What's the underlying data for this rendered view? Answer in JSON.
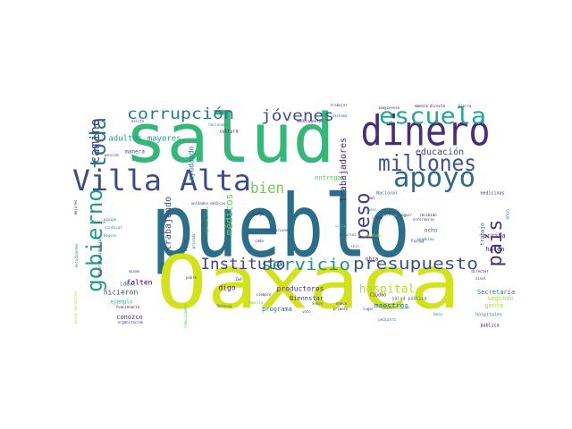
{
  "words": [
    {
      "text": "pueblo",
      "size": 96,
      "color": "#2b6e8a",
      "rotate": 0
    },
    {
      "text": "Oaxaca",
      "size": 82,
      "color": "#d2e21b",
      "rotate": 0
    },
    {
      "text": "salud",
      "size": 76,
      "color": "#35b779",
      "rotate": 0
    },
    {
      "text": "dinero",
      "size": 46,
      "color": "#472d7b",
      "rotate": 0
    },
    {
      "text": "Villa Alta",
      "size": 32,
      "color": "#3e4a89",
      "rotate": 0
    },
    {
      "text": "apoyo",
      "size": 30,
      "color": "#31688e",
      "rotate": 0
    },
    {
      "text": "escuela",
      "size": 26,
      "color": "#26a69a",
      "rotate": 0
    },
    {
      "text": "millones",
      "size": 25,
      "color": "#3b528b",
      "rotate": 0
    },
    {
      "text": "gobierno",
      "size": 24,
      "color": "#1f9e89",
      "rotate": -90
    },
    {
      "text": "toda",
      "size": 24,
      "color": "#2c728e",
      "rotate": -90
    },
    {
      "text": "país",
      "size": 22,
      "color": "#46327e",
      "rotate": -90
    },
    {
      "text": "peso",
      "size": 22,
      "color": "#433e85",
      "rotate": -90
    },
    {
      "text": "presupuesto",
      "size": 18,
      "color": "#3b528b",
      "rotate": 0
    },
    {
      "text": "servicio",
      "size": 18,
      "color": "#21918c",
      "rotate": 0
    },
    {
      "text": "Instituto",
      "size": 17,
      "color": "#433e85",
      "rotate": 0
    },
    {
      "text": "corrupción",
      "size": 17,
      "color": "#2a788e",
      "rotate": 0
    },
    {
      "text": "jóvenes",
      "size": 17,
      "color": "#3b528b",
      "rotate": 0
    },
    {
      "text": "bien",
      "size": 17,
      "color": "#6ece58",
      "rotate": 0
    },
    {
      "text": "camino",
      "size": 14,
      "color": "#414487",
      "rotate": -90
    },
    {
      "text": "hospital",
      "size": 13,
      "color": "#b5de2b",
      "rotate": 0
    },
    {
      "text": "médicos",
      "size": 11,
      "color": "#5ec962",
      "rotate": -90
    },
    {
      "text": "educación",
      "size": 10,
      "color": "#414487",
      "rotate": 0
    },
    {
      "text": "trabajadores",
      "size": 10,
      "color": "#482878",
      "rotate": -90
    },
    {
      "text": "trabajando",
      "size": 10,
      "color": "#3e4a89",
      "rotate": -90
    },
    {
      "text": "adultos mayores",
      "size": 9,
      "color": "#1f9e89",
      "rotate": 0
    },
    {
      "text": "ayudando",
      "size": 8,
      "color": "#2a788e",
      "rotate": -90
    },
    {
      "text": "hicieron",
      "size": 8,
      "color": "#3b528b",
      "rotate": 0
    },
    {
      "text": "falten",
      "size": 8,
      "color": "#440154",
      "rotate": 0
    },
    {
      "text": "digo",
      "size": 8,
      "color": "#472d7b",
      "rotate": 0
    },
    {
      "text": "productores",
      "size": 8,
      "color": "#46327e",
      "rotate": 0
    },
    {
      "text": "Bienestar",
      "size": 7,
      "color": "#414487",
      "rotate": 0
    },
    {
      "text": "maestros",
      "size": 8,
      "color": "#31688e",
      "rotate": 0
    },
    {
      "text": "Secretaría",
      "size": 7,
      "color": "#2a788e",
      "rotate": 0
    },
    {
      "text": "segundo",
      "size": 7,
      "color": "#b5de2b",
      "rotate": 0
    },
    {
      "text": "gente",
      "size": 7,
      "color": "#b5de2b",
      "rotate": 0
    },
    {
      "text": "hacen",
      "size": 7,
      "color": "#482878",
      "rotate": 0
    },
    {
      "text": "arriba",
      "size": 7,
      "color": "#482878",
      "rotate": 0
    },
    {
      "text": "entregar",
      "size": 7,
      "color": "#5ec962",
      "rotate": 0
    },
    {
      "text": "programa",
      "size": 7,
      "color": "#31688e",
      "rotate": 0
    },
    {
      "text": "conozco",
      "size": 7,
      "color": "#472d7b",
      "rotate": 0
    },
    {
      "text": "ideal",
      "size": 6,
      "color": "#31688e",
      "rotate": 0
    },
    {
      "text": "ejemplo",
      "size": 6,
      "color": "#35b779",
      "rotate": 0
    },
    {
      "text": "manera",
      "size": 6,
      "color": "#3e4a89",
      "rotate": 0
    },
    {
      "text": "cultura",
      "size": 5,
      "color": "#440154",
      "rotate": 0
    },
    {
      "text": "Nacional",
      "size": 5,
      "color": "#31688e",
      "rotate": 0
    },
    {
      "text": "medicinas",
      "size": 5,
      "color": "#472d7b",
      "rotate": 0
    },
    {
      "text": "forma",
      "size": 5,
      "color": "#46327e",
      "rotate": 0
    },
    {
      "text": "obra",
      "size": 6,
      "color": "#482878",
      "rotate": 0
    },
    {
      "text": "ocho",
      "size": 6,
      "color": "#3b528b",
      "rotate": 0
    },
    {
      "text": "trabajo",
      "size": 6,
      "color": "#3b528b",
      "rotate": -90
    },
    {
      "text": "años",
      "size": 5,
      "color": "#21918c",
      "rotate": -90
    },
    {
      "text": "Ciudad",
      "size": 5,
      "color": "#482878",
      "rotate": 0
    },
    {
      "text": "pública",
      "size": 5,
      "color": "#440154",
      "rotate": 0
    },
    {
      "text": "hospitales",
      "size": 5,
      "color": "#2a788e",
      "rotate": 0
    },
    {
      "text": "salud pública",
      "size": 5,
      "color": "#31688e",
      "rotate": 0
    },
    {
      "text": "instalaciones",
      "size": 4,
      "color": "#414487",
      "rotate": 0
    },
    {
      "text": "unidades médicas",
      "size": 4,
      "color": "#3e4a89",
      "rotate": 0
    },
    {
      "text": "medicamentos",
      "size": 4,
      "color": "#440154",
      "rotate": 0
    },
    {
      "text": "manera directa",
      "size": 4,
      "color": "#440154",
      "rotate": 0
    },
    {
      "text": "Sierra",
      "size": 4,
      "color": "#472d7b",
      "rotate": 0
    },
    {
      "text": "imagínense",
      "size": 4,
      "color": "#46327e",
      "rotate": 0
    },
    {
      "text": "trabajar",
      "size": 4,
      "color": "#3e4a89",
      "rotate": 0
    },
    {
      "text": "sistema",
      "size": 4,
      "color": "#2a788e",
      "rotate": 0
    },
    {
      "text": "haciendo",
      "size": 4,
      "color": "#21918c",
      "rotate": 0
    },
    {
      "text": "existe",
      "size": 4,
      "color": "#414487",
      "rotate": 0
    },
    {
      "text": "pensión",
      "size": 4,
      "color": "#3b528b",
      "rotate": 0
    },
    {
      "text": "cargo",
      "size": 4,
      "color": "#440154",
      "rotate": 0
    },
    {
      "text": "cada",
      "size": 4,
      "color": "#46327e",
      "rotate": 0
    },
    {
      "text": "mismo",
      "size": 4,
      "color": "#482878",
      "rotate": 0
    },
    {
      "text": "veces",
      "size": 4,
      "color": "#3e4a89",
      "rotate": 0
    },
    {
      "text": "equipo",
      "size": 4,
      "color": "#31688e",
      "rotate": 0
    },
    {
      "text": "sindical",
      "size": 4,
      "color": "#2a788e",
      "rotate": 0
    },
    {
      "text": "Seguro",
      "size": 4,
      "color": "#21918c",
      "rotate": 0
    },
    {
      "text": "pobre",
      "size": 4,
      "color": "#414487",
      "rotate": 0
    },
    {
      "text": "Zoé",
      "size": 4,
      "color": "#440154",
      "rotate": 0
    },
    {
      "text": "siempre",
      "size": 4,
      "color": "#482878",
      "rotate": 0
    },
    {
      "text": "Defensa",
      "size": 4,
      "color": "#3b528b",
      "rotate": 0
    },
    {
      "text": "familia",
      "size": 4,
      "color": "#5ec962",
      "rotate": 0
    },
    {
      "text": "voto",
      "size": 4,
      "color": "#414487",
      "rotate": 0
    },
    {
      "text": "Saben",
      "size": 4,
      "color": "#31688e",
      "rotate": 0
    },
    {
      "text": "nuevo",
      "size": 4,
      "color": "#46327e",
      "rotate": 0
    },
    {
      "text": "primero",
      "size": 4,
      "color": "#482878",
      "rotate": 0
    },
    {
      "text": "lugar",
      "size": 4,
      "color": "#3e4a89",
      "rotate": 0
    },
    {
      "text": "universidades",
      "size": 4,
      "color": "#35b779",
      "rotate": 0
    },
    {
      "text": "pediatra",
      "size": 4,
      "color": "#2a788e",
      "rotate": 0
    },
    {
      "text": "beca",
      "size": 4,
      "color": "#21918c",
      "rotate": 0
    },
    {
      "text": "director",
      "size": 4,
      "color": "#440154",
      "rotate": 0
    },
    {
      "text": "nivel",
      "size": 4,
      "color": "#472d7b",
      "rotate": 0
    },
    {
      "text": "recursos",
      "size": 4,
      "color": "#414487",
      "rotate": 0
    },
    {
      "text": "problema",
      "size": 4,
      "color": "#b5de2b",
      "rotate": 0
    },
    {
      "text": "seguir",
      "size": 4,
      "color": "#482878",
      "rotate": 0
    },
    {
      "text": "clases",
      "size": 4,
      "color": "#21918c",
      "rotate": 0
    },
    {
      "text": "derecho",
      "size": 4,
      "color": "#6ece58",
      "rotate": 0
    },
    {
      "text": "enfermeras",
      "size": 4,
      "color": "#3b528b",
      "rotate": 0
    },
    {
      "text": "recibían",
      "size": 4,
      "color": "#440154",
      "rotate": 0
    },
    {
      "text": "llega",
      "size": 4,
      "color": "#472d7b",
      "rotate": 0
    },
    {
      "text": "social",
      "size": 4,
      "color": "#5ec962",
      "rotate": 0
    },
    {
      "text": "seis",
      "size": 4,
      "color": "#31688e",
      "rotate": 0
    },
    {
      "text": "mal",
      "size": 4,
      "color": "#440154",
      "rotate": 0
    },
    {
      "text": "asamblea",
      "size": 4,
      "color": "#2a788e",
      "rotate": 0
    },
    {
      "text": "contrato",
      "size": 4,
      "color": "#46327e",
      "rotate": 0
    },
    {
      "text": "funcionario",
      "size": 4,
      "color": "#440154",
      "rotate": 0
    },
    {
      "text": "organización",
      "size": 4,
      "color": "#482878",
      "rotate": 0
    },
    {
      "text": "parte",
      "size": 4,
      "color": "#414487",
      "rotate": -90
    },
    {
      "text": "privada",
      "size": 4,
      "color": "#31688e",
      "rotate": -90
    },
    {
      "text": "mejores",
      "size": 4,
      "color": "#472d7b",
      "rotate": -90
    },
    {
      "text": "estudiantes",
      "size": 4,
      "color": "#2a788e",
      "rotate": -90
    },
    {
      "text": "Mayor Presidencial",
      "size": 4,
      "color": "#472d7b",
      "rotate": -90
    },
    {
      "text": "pesos mensuales",
      "size": 4,
      "color": "#b5de2b",
      "rotate": -90
    },
    {
      "text": "comunidades",
      "size": 4,
      "color": "#5ec962",
      "rotate": -90
    },
    {
      "text": "organizaciones",
      "size": 4,
      "color": "#6ece58",
      "rotate": -90
    }
  ]
}
